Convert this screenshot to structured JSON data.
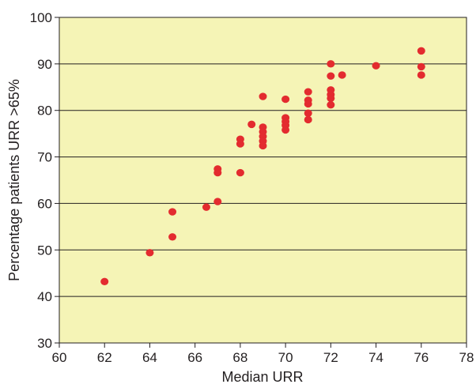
{
  "chart_data": {
    "type": "scatter",
    "title": "",
    "xlabel": "Median URR",
    "ylabel": "Percentage patients URR >65%",
    "xlim": [
      60,
      78
    ],
    "ylim": [
      30,
      100
    ],
    "xticks": [
      "60",
      "62",
      "64",
      "66",
      "68",
      "70",
      "72",
      "74",
      "76",
      "78"
    ],
    "yticks": [
      "30",
      "40",
      "50",
      "60",
      "70",
      "80",
      "90",
      "100"
    ],
    "grid": "horizontal",
    "colors": {
      "plot_background": "#f5f4b6",
      "points": "#e32b2f",
      "gridlines": "#231f20"
    },
    "points": [
      {
        "x": 62,
        "y": 43.2
      },
      {
        "x": 64,
        "y": 49.4
      },
      {
        "x": 65,
        "y": 58.2
      },
      {
        "x": 65,
        "y": 52.8
      },
      {
        "x": 66.5,
        "y": 59.2
      },
      {
        "x": 67,
        "y": 67.4
      },
      {
        "x": 67,
        "y": 66.6
      },
      {
        "x": 67,
        "y": 60.4
      },
      {
        "x": 68,
        "y": 73.8
      },
      {
        "x": 68,
        "y": 72.8
      },
      {
        "x": 68,
        "y": 66.6
      },
      {
        "x": 68.5,
        "y": 77.0
      },
      {
        "x": 69,
        "y": 83.0
      },
      {
        "x": 69,
        "y": 76.4
      },
      {
        "x": 69,
        "y": 75.4
      },
      {
        "x": 69,
        "y": 74.4
      },
      {
        "x": 69,
        "y": 73.4
      },
      {
        "x": 69,
        "y": 72.4
      },
      {
        "x": 70,
        "y": 82.4
      },
      {
        "x": 70,
        "y": 78.4
      },
      {
        "x": 70,
        "y": 77.6
      },
      {
        "x": 70,
        "y": 76.8
      },
      {
        "x": 70,
        "y": 75.8
      },
      {
        "x": 71,
        "y": 84.0
      },
      {
        "x": 71,
        "y": 82.2
      },
      {
        "x": 71,
        "y": 81.4
      },
      {
        "x": 71,
        "y": 79.4
      },
      {
        "x": 71,
        "y": 78.0
      },
      {
        "x": 72,
        "y": 90.0
      },
      {
        "x": 72,
        "y": 87.4
      },
      {
        "x": 72,
        "y": 84.4
      },
      {
        "x": 72,
        "y": 83.4
      },
      {
        "x": 72,
        "y": 82.6
      },
      {
        "x": 72,
        "y": 81.2
      },
      {
        "x": 72.5,
        "y": 87.6
      },
      {
        "x": 74,
        "y": 89.6
      },
      {
        "x": 76,
        "y": 92.8
      },
      {
        "x": 76,
        "y": 89.4
      },
      {
        "x": 76,
        "y": 87.6
      }
    ]
  }
}
